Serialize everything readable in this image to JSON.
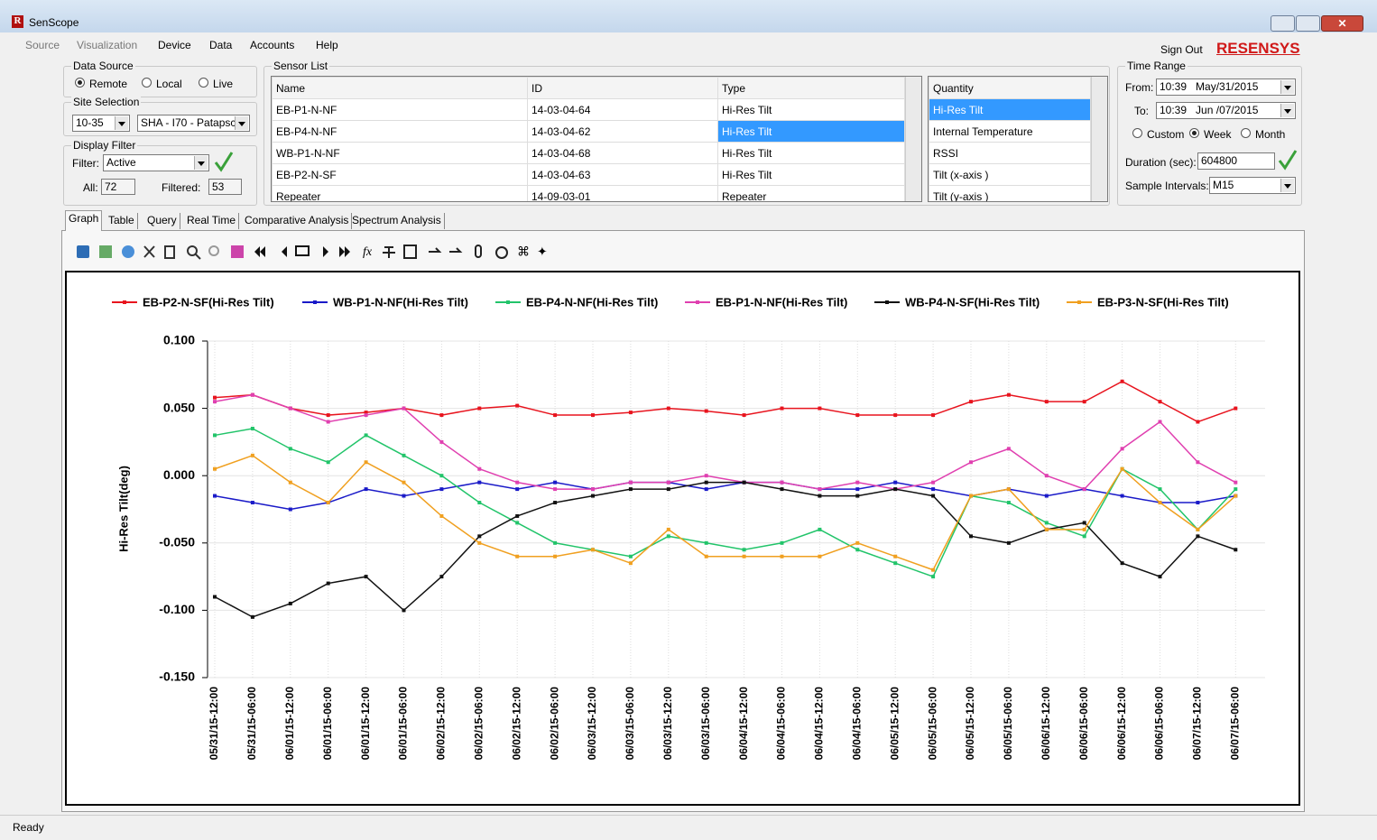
{
  "window": {
    "title": "SenScope"
  },
  "menu": [
    "Source",
    "Visualization",
    "Device",
    "Data",
    "Accounts",
    "Help"
  ],
  "header": {
    "sign_out": "Sign Out",
    "logo": "RESENSYS"
  },
  "data_source": {
    "title": "Data Source",
    "options": [
      "Remote",
      "Local",
      "Live"
    ]
  },
  "site_selection": {
    "title": "Site Selection",
    "site_id": "10-35",
    "site_name": "SHA - I70 - Patapscc"
  },
  "display_filter": {
    "title": "Display Filter",
    "filter_label": "Filter:",
    "filter_value": "Active",
    "all_label": "All:",
    "all_value": "72",
    "filtered_label": "Filtered:",
    "filtered_value": "53"
  },
  "sensor_list": {
    "title": "Sensor List",
    "columns": [
      "Name",
      "ID",
      "Type"
    ],
    "rows": [
      [
        "EB-P1-N-NF",
        "14-03-04-64",
        "Hi-Res Tilt"
      ],
      [
        "EB-P4-N-NF",
        "14-03-04-62",
        "Hi-Res Tilt"
      ],
      [
        "WB-P1-N-NF",
        "14-03-04-68",
        "Hi-Res Tilt"
      ],
      [
        "EB-P2-N-SF",
        "14-03-04-63",
        "Hi-Res Tilt"
      ],
      [
        "Repeater",
        "14-09-03-01",
        "Repeater"
      ]
    ]
  },
  "quantity_list": {
    "column": "Quantity",
    "items": [
      "Hi-Res Tilt",
      "Internal Temperature",
      "RSSI",
      "Tilt (x-axis )",
      "Tilt (y-axis )"
    ]
  },
  "time_range": {
    "title": "Time Range",
    "from_label": "From:",
    "from_time": "10:39",
    "from_date": "May/31/2015",
    "to_label": "To:",
    "to_time": "10:39",
    "to_date": "Jun /07/2015",
    "options": [
      "Custom",
      "Week",
      "Month"
    ],
    "duration_label": "Duration (sec):",
    "duration_value": "604800",
    "interval_label": "Sample Intervals:",
    "interval_value": "M15"
  },
  "tabs": [
    "Graph",
    "Table",
    "Query",
    "Real Time",
    "Comparative Analysis",
    "Spectrum Analysis"
  ],
  "status": "Ready",
  "chart_data": {
    "type": "line",
    "y_label": "Hi-Res Tilt(deg)",
    "categories": [
      "05/31/15-12:00",
      "05/31/15-06:00",
      "06/01/15-12:00",
      "06/01/15-06:00",
      "06/01/15-12:00",
      "06/01/15-06:00",
      "06/02/15-12:00",
      "06/02/15-06:00",
      "06/02/15-12:00",
      "06/02/15-06:00",
      "06/03/15-12:00",
      "06/03/15-06:00",
      "06/03/15-12:00",
      "06/03/15-06:00",
      "06/04/15-12:00",
      "06/04/15-06:00",
      "06/04/15-12:00",
      "06/04/15-06:00",
      "06/05/15-12:00",
      "06/05/15-06:00",
      "06/05/15-12:00",
      "06/05/15-06:00",
      "06/06/15-12:00",
      "06/06/15-06:00",
      "06/06/15-12:00",
      "06/06/15-06:00",
      "06/07/15-12:00",
      "06/07/15-06:00"
    ],
    "series": [
      {
        "name": "EB-P2-N-SF(Hi-Res Tilt)",
        "color": "#e8141e",
        "values": [
          0.058,
          0.06,
          0.05,
          0.045,
          0.047,
          0.05,
          0.045,
          0.05,
          0.052,
          0.045,
          0.045,
          0.047,
          0.05,
          0.048,
          0.045,
          0.05,
          0.05,
          0.045,
          0.045,
          0.045,
          0.055,
          0.06,
          0.055,
          0.055,
          0.07,
          0.055,
          0.04,
          0.05
        ]
      },
      {
        "name": "WB-P1-N-NF(Hi-Res Tilt)",
        "color": "#1a1ac8",
        "values": [
          -0.015,
          -0.02,
          -0.025,
          -0.02,
          -0.01,
          -0.015,
          -0.01,
          -0.005,
          -0.01,
          -0.005,
          -0.01,
          -0.005,
          -0.005,
          -0.01,
          -0.005,
          -0.005,
          -0.01,
          -0.01,
          -0.005,
          -0.01,
          -0.015,
          -0.01,
          -0.015,
          -0.01,
          -0.015,
          -0.02,
          -0.02,
          -0.015
        ]
      },
      {
        "name": "EB-P4-N-NF(Hi-Res Tilt)",
        "color": "#22c46a",
        "values": [
          0.03,
          0.035,
          0.02,
          0.01,
          0.03,
          0.015,
          0.0,
          -0.02,
          -0.035,
          -0.05,
          -0.055,
          -0.06,
          -0.045,
          -0.05,
          -0.055,
          -0.05,
          -0.04,
          -0.055,
          -0.065,
          -0.075,
          -0.015,
          -0.02,
          -0.035,
          -0.045,
          0.005,
          -0.01,
          -0.04,
          -0.01
        ]
      },
      {
        "name": "EB-P1-N-NF(Hi-Res Tilt)",
        "color": "#e040b0",
        "values": [
          0.055,
          0.06,
          0.05,
          0.04,
          0.045,
          0.05,
          0.025,
          0.005,
          -0.005,
          -0.01,
          -0.01,
          -0.005,
          -0.005,
          0.0,
          -0.005,
          -0.005,
          -0.01,
          -0.005,
          -0.01,
          -0.005,
          0.01,
          0.02,
          0.0,
          -0.01,
          0.02,
          0.04,
          0.01,
          -0.005
        ]
      },
      {
        "name": "WB-P4-N-SF(Hi-Res Tilt)",
        "color": "#111111",
        "values": [
          -0.09,
          -0.105,
          -0.095,
          -0.08,
          -0.075,
          -0.1,
          -0.075,
          -0.045,
          -0.03,
          -0.02,
          -0.015,
          -0.01,
          -0.01,
          -0.005,
          -0.005,
          -0.01,
          -0.015,
          -0.015,
          -0.01,
          -0.015,
          -0.045,
          -0.05,
          -0.04,
          -0.035,
          -0.065,
          -0.075,
          -0.045,
          -0.055
        ]
      },
      {
        "name": "EB-P3-N-SF(Hi-Res Tilt)",
        "color": "#f0a020",
        "values": [
          0.005,
          0.015,
          -0.005,
          -0.02,
          0.01,
          -0.005,
          -0.03,
          -0.05,
          -0.06,
          -0.06,
          -0.055,
          -0.065,
          -0.04,
          -0.06,
          -0.06,
          -0.06,
          -0.06,
          -0.05,
          -0.06,
          -0.07,
          -0.015,
          -0.01,
          -0.04,
          -0.04,
          0.005,
          -0.02,
          -0.04,
          -0.015
        ]
      }
    ],
    "ylim": [
      -0.15,
      0.1
    ],
    "yticks": [
      {
        "value": -0.15,
        "label": "-0.150"
      },
      {
        "value": -0.1,
        "label": "-0.100"
      },
      {
        "value": -0.05,
        "label": "-0.050"
      },
      {
        "value": 0,
        "label": "0.000"
      },
      {
        "value": 0.05,
        "label": "0.050"
      },
      {
        "value": 0.1,
        "label": "0.100"
      }
    ],
    "grid": true,
    "legend": "top"
  }
}
